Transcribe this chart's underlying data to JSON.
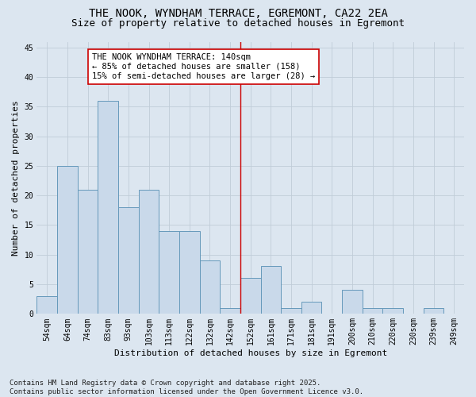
{
  "title": "THE NOOK, WYNDHAM TERRACE, EGREMONT, CA22 2EA",
  "subtitle": "Size of property relative to detached houses in Egremont",
  "xlabel": "Distribution of detached houses by size in Egremont",
  "ylabel": "Number of detached properties",
  "bar_labels": [
    "54sqm",
    "64sqm",
    "74sqm",
    "83sqm",
    "93sqm",
    "103sqm",
    "113sqm",
    "122sqm",
    "132sqm",
    "142sqm",
    "152sqm",
    "161sqm",
    "171sqm",
    "181sqm",
    "191sqm",
    "200sqm",
    "210sqm",
    "220sqm",
    "230sqm",
    "239sqm",
    "249sqm"
  ],
  "bar_values": [
    3,
    25,
    21,
    36,
    18,
    21,
    14,
    14,
    9,
    1,
    6,
    8,
    1,
    2,
    0,
    4,
    1,
    1,
    0,
    1,
    0
  ],
  "bar_color": "#c9d9ea",
  "bar_edge_color": "#6699bb",
  "background_color": "#dce6f0",
  "grid_color": "#c0ccd8",
  "annotation_text": "THE NOOK WYNDHAM TERRACE: 140sqm\n← 85% of detached houses are smaller (158)\n15% of semi-detached houses are larger (28) →",
  "vline_x_index": 9.5,
  "annotation_box_color": "#ffffff",
  "annotation_box_edge_color": "#cc0000",
  "vline_color": "#cc0000",
  "ylim": [
    0,
    46
  ],
  "yticks": [
    0,
    5,
    10,
    15,
    20,
    25,
    30,
    35,
    40,
    45
  ],
  "footer": "Contains HM Land Registry data © Crown copyright and database right 2025.\nContains public sector information licensed under the Open Government Licence v3.0.",
  "title_fontsize": 10,
  "subtitle_fontsize": 9,
  "axis_label_fontsize": 8,
  "tick_fontsize": 7,
  "annotation_fontsize": 7.5,
  "footer_fontsize": 6.5
}
